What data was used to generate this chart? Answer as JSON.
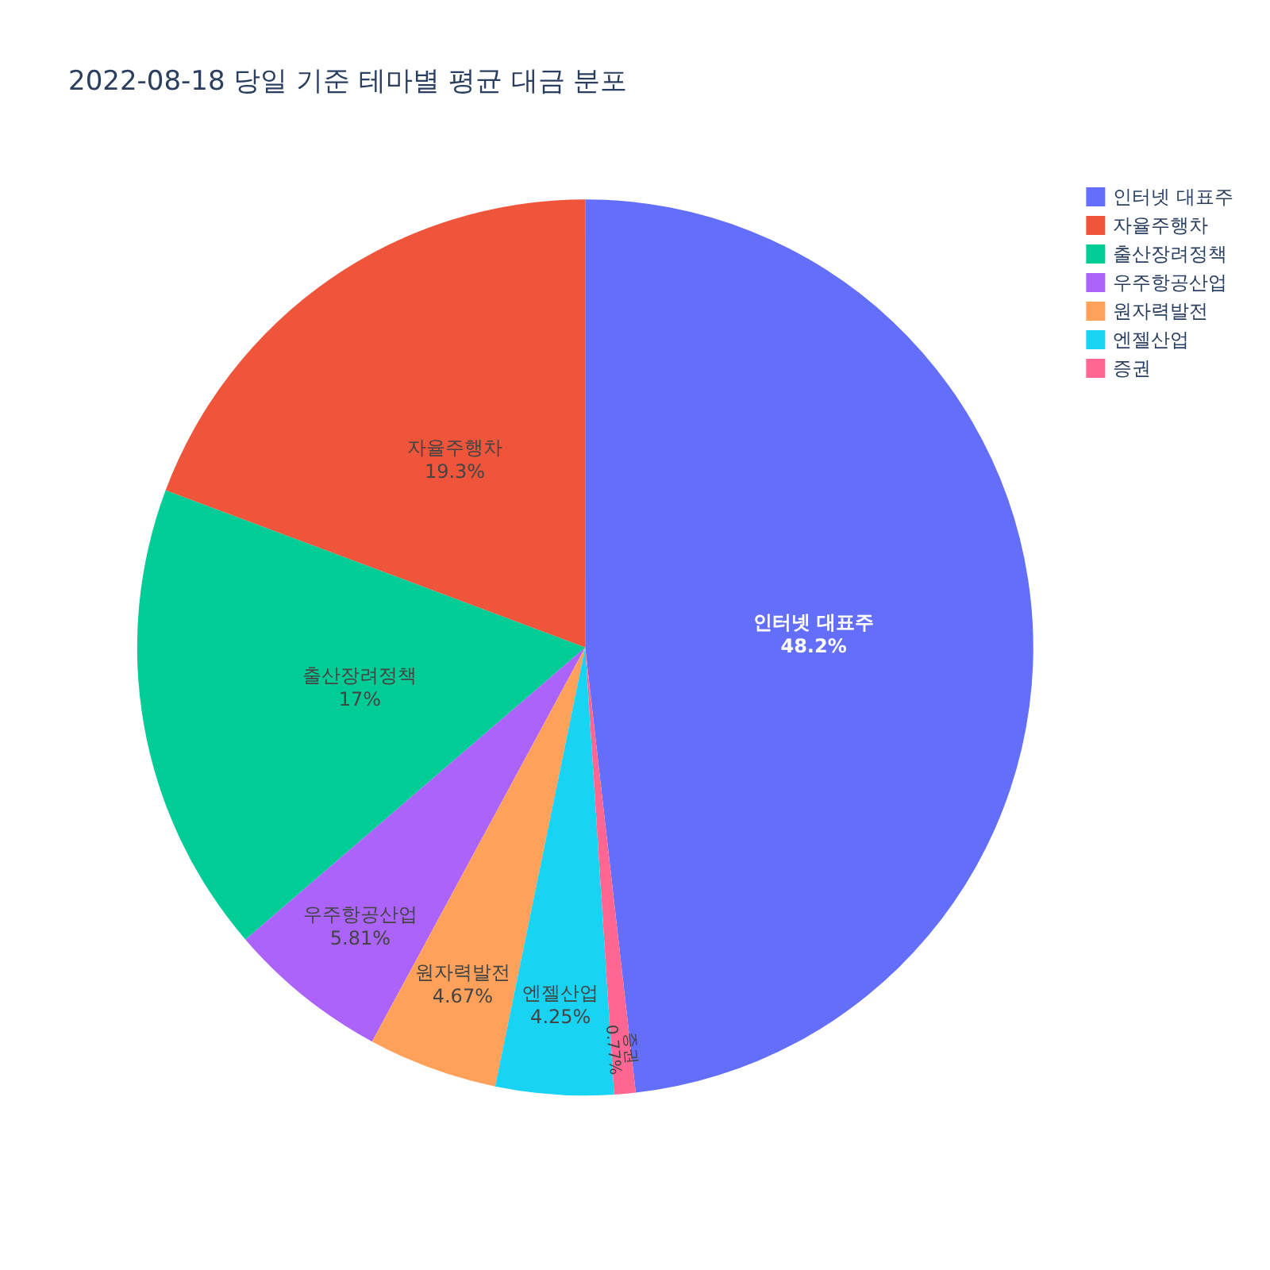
{
  "chart_data": {
    "type": "pie",
    "title": "2022-08-18 당일 기준 테마별 평균 대금 분포",
    "categories": [
      "인터넷 대표주",
      "자율주행차",
      "출산장려정책",
      "우주항공산업",
      "원자력발전",
      "엔젤산업",
      "증권"
    ],
    "values": [
      48.2,
      19.3,
      17,
      5.81,
      4.67,
      4.25,
      0.77
    ],
    "colors": [
      "#636efa",
      "#ef553b",
      "#00cc96",
      "#ab63fa",
      "#ffa15a",
      "#19d3f3",
      "#ff6692"
    ],
    "value_labels": [
      "48.2%",
      "19.3%",
      "17%",
      "5.81%",
      "4.67%",
      "4.25%",
      "0.77%"
    ],
    "legend": "top right"
  }
}
